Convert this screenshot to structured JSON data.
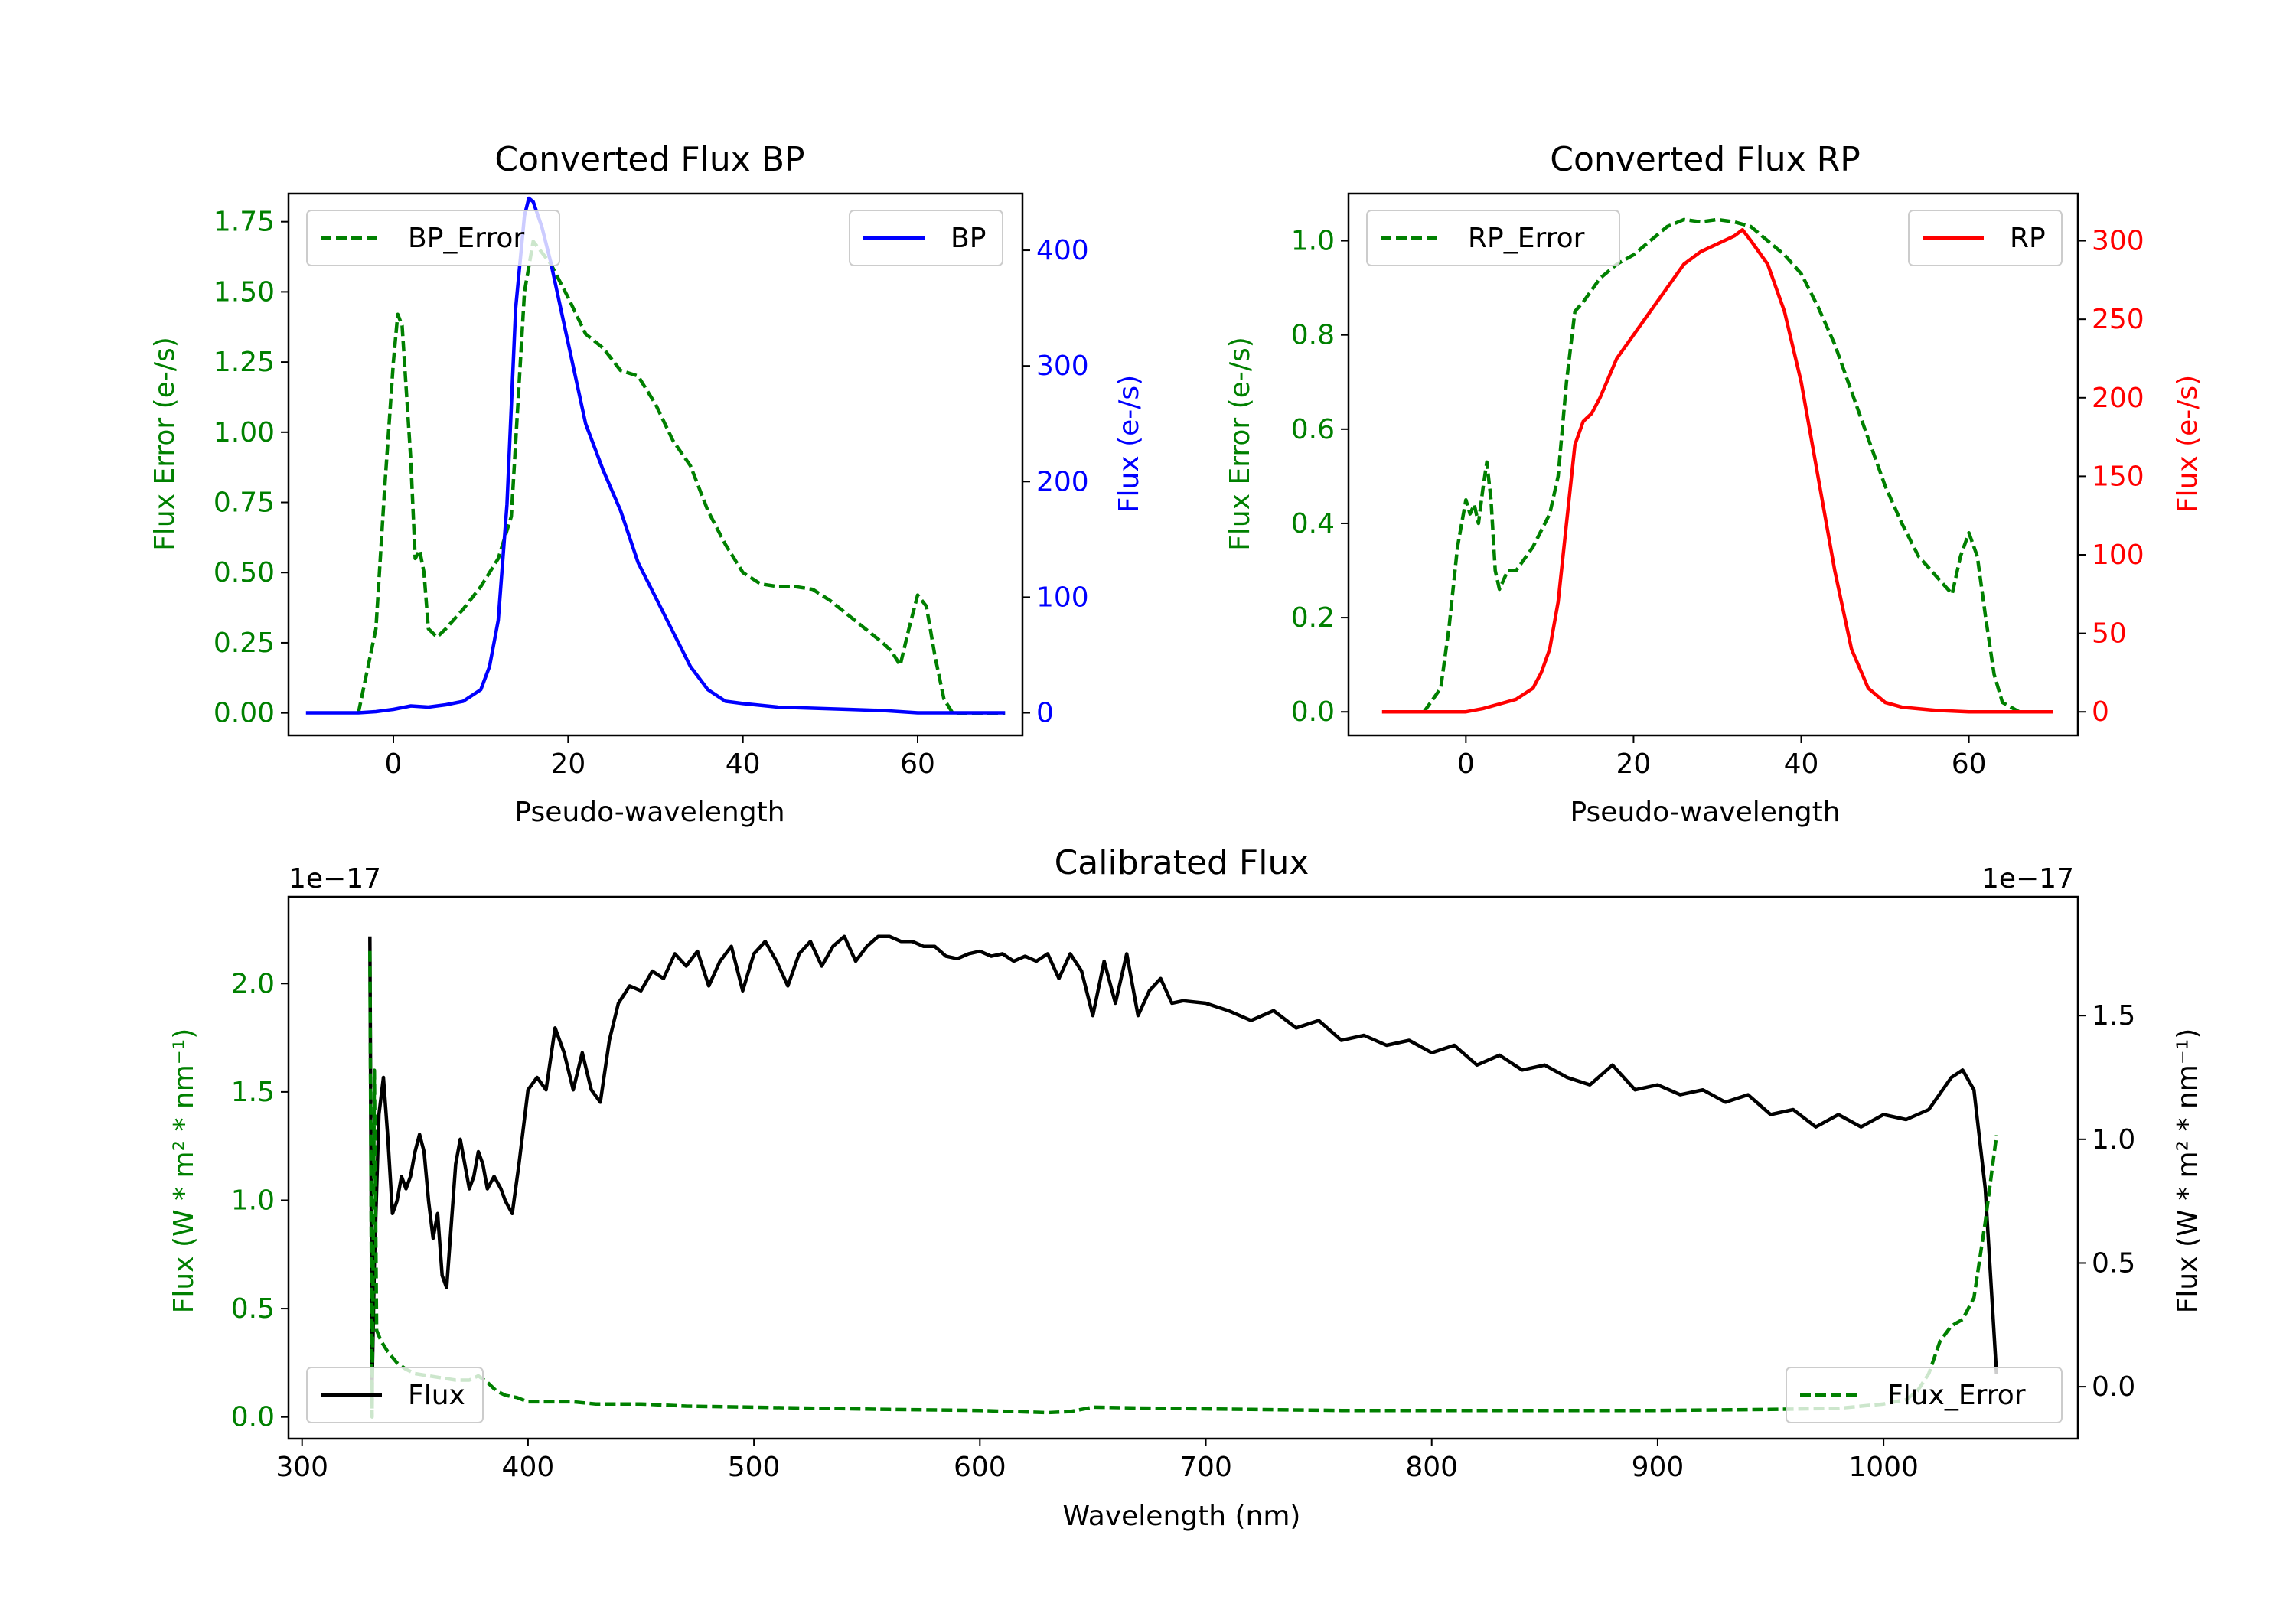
{
  "chart_data": [
    {
      "type": "line",
      "title": "Converted Flux BP",
      "xlabel": "Pseudo-wavelength",
      "ylabel_left": "Flux Error (e-/s)",
      "ylabel_right": "Flux (e-/s)",
      "xlim": [
        -12,
        72
      ],
      "ylim_left": [
        -0.08,
        1.85
      ],
      "ylim_right": [
        -19.5,
        449
      ],
      "x_ticks": [
        0,
        20,
        40,
        60
      ],
      "y_ticks_left": [
        "0.00",
        "0.25",
        "0.50",
        "0.75",
        "1.00",
        "1.25",
        "1.50",
        "1.75"
      ],
      "y_ticks_right": [
        "0",
        "100",
        "200",
        "300",
        "400"
      ],
      "colors": {
        "error": "#008000",
        "flux": "#0000ff"
      },
      "legend": [
        {
          "label": "BP_Error",
          "position": "upper-left",
          "style": "dashed",
          "color": "#008000"
        },
        {
          "label": "BP",
          "position": "upper-right",
          "style": "solid",
          "color": "#0000ff"
        }
      ],
      "series": [
        {
          "name": "BP_Error",
          "axis": "left",
          "style": "dashed",
          "color": "#008000",
          "x": [
            -4,
            -2,
            -1,
            0,
            0.5,
            1,
            2,
            2.5,
            3,
            3.5,
            4,
            5,
            6,
            8,
            10,
            12,
            13.5,
            15,
            16,
            18,
            20,
            22,
            24,
            26,
            28,
            30,
            32,
            34,
            36,
            38,
            40,
            42,
            44,
            46,
            48,
            50,
            52,
            54,
            56,
            57,
            58,
            59,
            60,
            61,
            62,
            63,
            64,
            66,
            70
          ],
          "y": [
            0.0,
            0.3,
            0.8,
            1.25,
            1.42,
            1.38,
            0.9,
            0.55,
            0.58,
            0.5,
            0.3,
            0.27,
            0.3,
            0.37,
            0.45,
            0.55,
            0.7,
            1.5,
            1.68,
            1.6,
            1.48,
            1.35,
            1.3,
            1.22,
            1.2,
            1.1,
            0.97,
            0.88,
            0.72,
            0.6,
            0.5,
            0.46,
            0.45,
            0.45,
            0.44,
            0.4,
            0.35,
            0.3,
            0.25,
            0.22,
            0.17,
            0.3,
            0.42,
            0.38,
            0.2,
            0.05,
            0.0,
            0.0,
            0.0
          ]
        },
        {
          "name": "BP",
          "axis": "right",
          "style": "solid",
          "color": "#0000ff",
          "x": [
            -10,
            -6,
            -4,
            -2,
            0,
            2,
            4,
            6,
            8,
            10,
            11,
            12,
            13,
            14,
            15,
            15.5,
            16,
            17,
            18,
            20,
            22,
            24,
            26,
            28,
            30,
            32,
            34,
            36,
            38,
            40,
            44,
            48,
            52,
            56,
            60,
            64,
            70
          ],
          "y": [
            0,
            0,
            0,
            1,
            3,
            6,
            5,
            7,
            10,
            20,
            40,
            80,
            180,
            350,
            430,
            445,
            442,
            420,
            390,
            320,
            250,
            210,
            175,
            130,
            100,
            70,
            40,
            20,
            10,
            8,
            5,
            4,
            3,
            2,
            0,
            0,
            0
          ]
        }
      ]
    },
    {
      "type": "line",
      "title": "Converted Flux RP",
      "xlabel": "Pseudo-wavelength",
      "ylabel_left": "Flux Error (e-/s)",
      "ylabel_right": "Flux (e-/s)",
      "xlim": [
        -14,
        73
      ],
      "ylim_left": [
        -0.05,
        1.1
      ],
      "ylim_right": [
        -15,
        330
      ],
      "x_ticks": [
        0,
        20,
        40,
        60
      ],
      "y_ticks_left": [
        "0.0",
        "0.2",
        "0.4",
        "0.6",
        "0.8",
        "1.0"
      ],
      "y_ticks_right": [
        "0",
        "50",
        "100",
        "150",
        "200",
        "250",
        "300"
      ],
      "colors": {
        "error": "#008000",
        "flux": "#ff0000"
      },
      "legend": [
        {
          "label": "RP_Error",
          "position": "upper-left",
          "style": "dashed",
          "color": "#008000"
        },
        {
          "label": "RP",
          "position": "upper-right",
          "style": "solid",
          "color": "#ff0000"
        }
      ],
      "series": [
        {
          "name": "RP_Error",
          "axis": "left",
          "style": "dashed",
          "color": "#008000",
          "x": [
            -5,
            -3,
            -2,
            -1,
            0,
            0.5,
            1,
            1.5,
            2,
            2.5,
            3,
            3.5,
            4,
            5,
            6,
            8,
            10,
            11,
            12,
            13,
            14,
            16,
            18,
            20,
            22,
            24,
            26,
            28,
            30,
            32,
            34,
            36,
            38,
            40,
            42,
            44,
            46,
            48,
            50,
            52,
            54,
            56,
            57,
            58,
            59,
            60,
            61,
            62,
            63,
            64,
            66,
            70
          ],
          "y": [
            0.0,
            0.05,
            0.18,
            0.35,
            0.45,
            0.42,
            0.44,
            0.4,
            0.47,
            0.53,
            0.45,
            0.3,
            0.26,
            0.3,
            0.3,
            0.35,
            0.42,
            0.5,
            0.7,
            0.85,
            0.87,
            0.92,
            0.95,
            0.97,
            1.0,
            1.03,
            1.045,
            1.04,
            1.045,
            1.04,
            1.03,
            1.0,
            0.97,
            0.93,
            0.86,
            0.78,
            0.68,
            0.58,
            0.48,
            0.4,
            0.33,
            0.29,
            0.27,
            0.25,
            0.33,
            0.38,
            0.33,
            0.2,
            0.08,
            0.02,
            0.0,
            0.0
          ]
        },
        {
          "name": "RP",
          "axis": "right",
          "style": "solid",
          "color": "#ff0000",
          "x": [
            -10,
            -4,
            0,
            2,
            4,
            6,
            8,
            9,
            10,
            11,
            12,
            13,
            14,
            15,
            16,
            18,
            20,
            22,
            24,
            26,
            28,
            30,
            32,
            33,
            34,
            36,
            38,
            40,
            42,
            44,
            46,
            48,
            50,
            52,
            56,
            60,
            70
          ],
          "y": [
            0,
            0,
            0,
            2,
            5,
            8,
            15,
            25,
            40,
            70,
            120,
            170,
            185,
            190,
            200,
            225,
            240,
            255,
            270,
            285,
            293,
            298,
            303,
            307,
            300,
            285,
            255,
            210,
            150,
            90,
            40,
            15,
            6,
            3,
            1,
            0,
            0
          ]
        }
      ]
    },
    {
      "type": "line",
      "title": "Calibrated Flux",
      "xlabel": "Wavelength (nm)",
      "ylabel_left": "Flux (W * m² * nm⁻¹)",
      "ylabel_right": "Flux (W * m² * nm⁻¹)",
      "offset_left": "1e−17",
      "offset_right": "1e−17",
      "xlim": [
        294,
        1086
      ],
      "ylim_left": [
        -0.1,
        2.4
      ],
      "ylim_right": [
        -0.21,
        1.98
      ],
      "x_ticks": [
        300,
        400,
        500,
        600,
        700,
        800,
        900,
        1000
      ],
      "y_ticks_left": [
        "0.0",
        "0.5",
        "1.0",
        "1.5",
        "2.0"
      ],
      "y_ticks_right": [
        "0.0",
        "0.5",
        "1.0",
        "1.5"
      ],
      "colors": {
        "error": "#008000",
        "flux": "#000000"
      },
      "legend": [
        {
          "label": "Flux",
          "position": "lower-left",
          "style": "solid",
          "color": "#000000"
        },
        {
          "label": "Flux_Error",
          "position": "lower-right",
          "style": "dashed",
          "color": "#008000"
        }
      ],
      "series": [
        {
          "name": "Flux",
          "axis": "right",
          "style": "solid",
          "color": "#000000",
          "x": [
            330,
            331,
            332,
            334,
            336,
            338,
            340,
            342,
            344,
            346,
            348,
            350,
            352,
            354,
            356,
            358,
            360,
            362,
            364,
            366,
            368,
            370,
            372,
            374,
            376,
            378,
            380,
            382,
            385,
            388,
            390,
            393,
            396,
            400,
            404,
            408,
            412,
            416,
            420,
            424,
            428,
            432,
            436,
            440,
            445,
            450,
            455,
            460,
            465,
            470,
            475,
            480,
            485,
            490,
            495,
            500,
            505,
            510,
            515,
            520,
            525,
            530,
            535,
            540,
            545,
            550,
            555,
            560,
            565,
            570,
            575,
            580,
            585,
            590,
            595,
            600,
            605,
            610,
            615,
            620,
            625,
            630,
            635,
            640,
            645,
            650,
            655,
            660,
            665,
            670,
            675,
            680,
            685,
            690,
            700,
            710,
            720,
            730,
            740,
            750,
            760,
            770,
            780,
            790,
            800,
            810,
            820,
            830,
            840,
            850,
            860,
            870,
            880,
            890,
            900,
            910,
            920,
            930,
            940,
            950,
            960,
            970,
            980,
            990,
            1000,
            1010,
            1020,
            1030,
            1035,
            1040,
            1045,
            1050
          ],
          "y": [
            1.82,
            0.0,
            0.5,
            1.1,
            1.25,
            1.0,
            0.7,
            0.75,
            0.85,
            0.8,
            0.85,
            0.95,
            1.02,
            0.95,
            0.75,
            0.6,
            0.7,
            0.45,
            0.4,
            0.65,
            0.9,
            1.0,
            0.9,
            0.8,
            0.85,
            0.95,
            0.9,
            0.8,
            0.85,
            0.8,
            0.75,
            0.7,
            0.9,
            1.2,
            1.25,
            1.2,
            1.45,
            1.35,
            1.2,
            1.35,
            1.2,
            1.15,
            1.4,
            1.55,
            1.62,
            1.6,
            1.68,
            1.65,
            1.75,
            1.7,
            1.76,
            1.62,
            1.72,
            1.78,
            1.6,
            1.75,
            1.8,
            1.72,
            1.62,
            1.75,
            1.8,
            1.7,
            1.78,
            1.82,
            1.72,
            1.78,
            1.82,
            1.82,
            1.8,
            1.8,
            1.78,
            1.78,
            1.74,
            1.73,
            1.75,
            1.76,
            1.74,
            1.75,
            1.72,
            1.74,
            1.72,
            1.75,
            1.65,
            1.75,
            1.68,
            1.5,
            1.72,
            1.55,
            1.75,
            1.5,
            1.6,
            1.65,
            1.55,
            1.56,
            1.55,
            1.52,
            1.48,
            1.52,
            1.45,
            1.48,
            1.4,
            1.42,
            1.38,
            1.4,
            1.35,
            1.38,
            1.3,
            1.34,
            1.28,
            1.3,
            1.25,
            1.22,
            1.3,
            1.2,
            1.22,
            1.18,
            1.2,
            1.15,
            1.18,
            1.1,
            1.12,
            1.05,
            1.1,
            1.05,
            1.1,
            1.08,
            1.12,
            1.25,
            1.28,
            1.2,
            0.8,
            0.05
          ]
        },
        {
          "name": "Flux_Error",
          "axis": "left",
          "style": "dashed",
          "color": "#008000",
          "x": [
            330,
            331,
            332,
            333,
            335,
            338,
            342,
            346,
            350,
            356,
            362,
            368,
            374,
            378,
            382,
            386,
            390,
            395,
            400,
            410,
            420,
            430,
            440,
            450,
            470,
            500,
            530,
            560,
            600,
            630,
            640,
            650,
            680,
            720,
            760,
            800,
            850,
            900,
            950,
            980,
            1000,
            1010,
            1015,
            1020,
            1025,
            1030,
            1035,
            1040,
            1045,
            1050
          ],
          "y": [
            2.15,
            0.0,
            1.6,
            0.4,
            0.35,
            0.3,
            0.25,
            0.22,
            0.2,
            0.19,
            0.18,
            0.17,
            0.17,
            0.19,
            0.16,
            0.12,
            0.1,
            0.09,
            0.07,
            0.07,
            0.07,
            0.06,
            0.06,
            0.06,
            0.05,
            0.045,
            0.04,
            0.035,
            0.03,
            0.02,
            0.025,
            0.045,
            0.04,
            0.035,
            0.03,
            0.03,
            0.03,
            0.03,
            0.035,
            0.04,
            0.06,
            0.08,
            0.12,
            0.2,
            0.35,
            0.42,
            0.45,
            0.55,
            0.9,
            1.3
          ]
        }
      ]
    }
  ]
}
